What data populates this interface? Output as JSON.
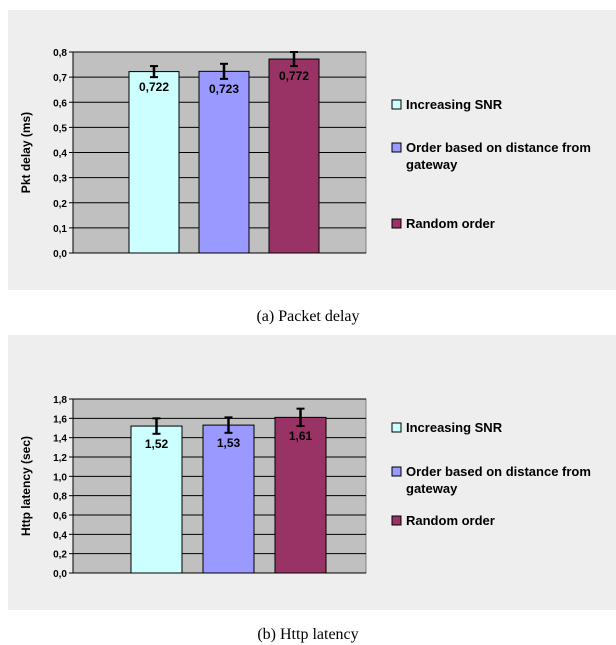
{
  "captions": {
    "a": "(a) Packet delay",
    "b": "(b) Http latency"
  },
  "colors": {
    "series": [
      "#ccffff",
      "#9999ff",
      "#993366"
    ],
    "plot_bg": "#c0c0c0",
    "panel_bg": "#eeeeee"
  },
  "chart_data": [
    {
      "type": "bar",
      "ylabel": "Pkt delay (ms)",
      "ylim": [
        0,
        0.8
      ],
      "yticks": [
        "0,0",
        "0,1",
        "0,2",
        "0,3",
        "0,4",
        "0,5",
        "0,6",
        "0,7",
        "0,8"
      ],
      "grid": true,
      "legend_position": "right",
      "series": [
        {
          "name": "Increasing SNR",
          "value": 0.722,
          "label": "0,722",
          "err": 0.022
        },
        {
          "name": "Order based on distance from gateway",
          "value": 0.723,
          "label": "0,723",
          "err": 0.03
        },
        {
          "name": "Random order",
          "value": 0.772,
          "label": "0,772",
          "err": 0.028
        }
      ]
    },
    {
      "type": "bar",
      "ylabel": "Http latency (sec)",
      "ylim": [
        0,
        1.8
      ],
      "yticks": [
        "0,0",
        "0,2",
        "0,4",
        "0,6",
        "0,8",
        "1,0",
        "1,2",
        "1,4",
        "1,6",
        "1,8"
      ],
      "grid": true,
      "legend_position": "right",
      "series": [
        {
          "name": "Increasing SNR",
          "value": 1.52,
          "label": "1,52",
          "err": 0.08
        },
        {
          "name": "Order based on distance from gateway",
          "value": 1.53,
          "label": "1,53",
          "err": 0.08
        },
        {
          "name": "Random order",
          "value": 1.61,
          "label": "1,61",
          "err": 0.09
        }
      ]
    }
  ]
}
